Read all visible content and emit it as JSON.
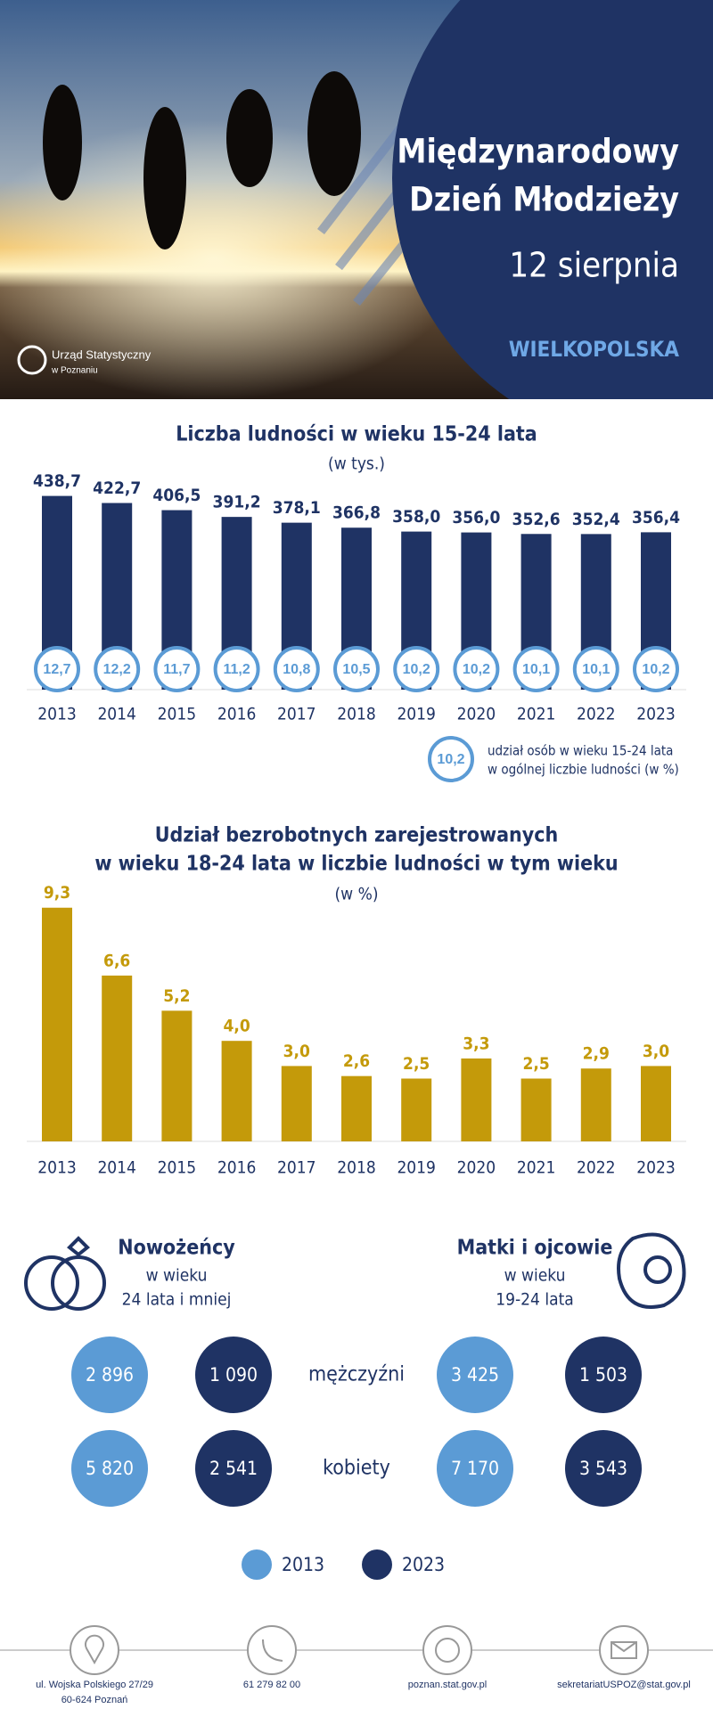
{
  "header": {
    "title_line1": "Międzynarodowy",
    "title_line2": "Dzień Młodzieży",
    "date": "12 sierpnia",
    "region": "WIELKOPOLSKA",
    "logo_line1": "Urząd Statystyczny",
    "logo_line2": "w Poznaniu"
  },
  "chart_data": [
    {
      "type": "bar",
      "title": "Liczba ludności w wieku 15-24 lata",
      "subtitle": "(w tys.)",
      "categories": [
        "2013",
        "2014",
        "2015",
        "2016",
        "2017",
        "2018",
        "2019",
        "2020",
        "2021",
        "2022",
        "2023"
      ],
      "values": [
        438.7,
        422.7,
        406.5,
        391.2,
        378.1,
        366.8,
        358.0,
        356.0,
        352.6,
        352.4,
        356.4
      ],
      "value_labels": [
        "438,7",
        "422,7",
        "406,5",
        "391,2",
        "378,1",
        "366,8",
        "358,0",
        "356,0",
        "352,6",
        "352,4",
        "356,4"
      ],
      "color": "#1f3364",
      "ylim": [
        0,
        450
      ],
      "share": {
        "name": "udział osób w wieku 15-24 lata w ogólnej liczbie ludności (w %)",
        "name_line1": "udział osób w wieku 15-24 lata",
        "name_line2": "w ogólnej liczbie ludności (w %)",
        "legend_sample": "10,2",
        "color": "#5b9bd5",
        "values": [
          12.7,
          12.2,
          11.7,
          11.2,
          10.8,
          10.5,
          10.2,
          10.2,
          10.1,
          10.1,
          10.2
        ],
        "value_labels": [
          "12,7",
          "12,2",
          "11,7",
          "11,2",
          "10,8",
          "10,5",
          "10,2",
          "10,2",
          "10,1",
          "10,1",
          "10,2"
        ]
      }
    },
    {
      "type": "bar",
      "title_line1": "Udział bezrobotnych zarejestrowanych",
      "title_line2": "w wieku 18-24 lata w liczbie ludności w tym wieku",
      "subtitle": "(w %)",
      "categories": [
        "2013",
        "2014",
        "2015",
        "2016",
        "2017",
        "2018",
        "2019",
        "2020",
        "2021",
        "2022",
        "2023"
      ],
      "values": [
        9.3,
        6.6,
        5.2,
        4.0,
        3.0,
        2.6,
        2.5,
        3.3,
        2.5,
        2.9,
        3.0
      ],
      "value_labels": [
        "9,3",
        "6,6",
        "5,2",
        "4,0",
        "3,0",
        "2,6",
        "2,5",
        "3,3",
        "2,5",
        "2,9",
        "3,0"
      ],
      "color": "#c49a0a",
      "ylim": [
        0,
        10
      ]
    }
  ],
  "newlyweds": {
    "title": "Nowożeńcy",
    "line1": "w wieku",
    "line2": "24 lata i mniej",
    "men": [
      "2 896",
      "1 090"
    ],
    "women": [
      "5 820",
      "2 541"
    ]
  },
  "parents": {
    "title": "Matki i ojcowie",
    "line1": "w wieku",
    "line2": "19-24 lata",
    "men": [
      "3 425",
      "1 503"
    ],
    "women": [
      "7 170",
      "3 543"
    ]
  },
  "rows": {
    "men": "mężczyźni",
    "women": "kobiety"
  },
  "legend": [
    {
      "label": "2013",
      "color": "#5b9bd5"
    },
    {
      "label": "2023",
      "color": "#1f3364"
    }
  ],
  "footer": {
    "address_line1": "ul. Wojska Polskiego 27/29",
    "address_line2": "60-624 Poznań",
    "phone": "61 279 82 00",
    "web": "poznan.stat.gov.pl",
    "email": "sekretariatUSPOZ@stat.gov.pl"
  }
}
